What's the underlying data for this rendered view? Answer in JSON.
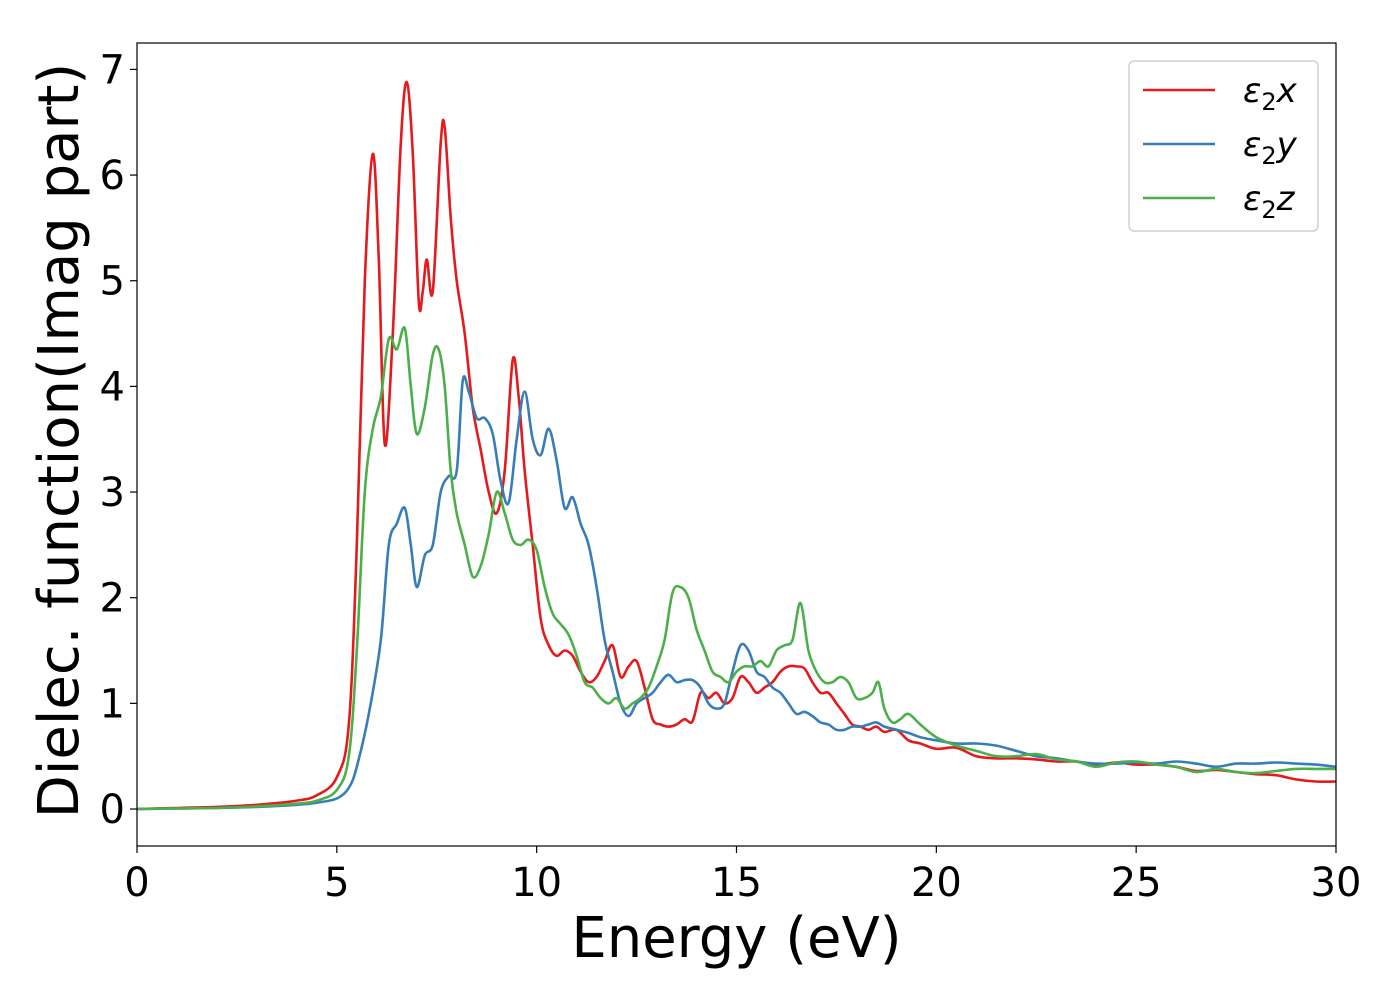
{
  "chart_data": {
    "type": "line",
    "xlabel": "Energy (eV)",
    "ylabel": "Dielec. function(Imag part)",
    "xlim": [
      0,
      30
    ],
    "ylim": [
      -0.35,
      7.25
    ],
    "xticks": [
      0,
      5,
      10,
      15,
      20,
      25,
      30
    ],
    "yticks": [
      0,
      1,
      2,
      3,
      4,
      5,
      6,
      7
    ],
    "grid": false,
    "legend_position": "top-right",
    "series": [
      {
        "name": "ε2x",
        "legend_main": "ε",
        "legend_sub": "2",
        "legend_tail": "x",
        "color": "#e41a1c",
        "points": [
          [
            0,
            0.0
          ],
          [
            1,
            0.01
          ],
          [
            2,
            0.02
          ],
          [
            3,
            0.04
          ],
          [
            4,
            0.08
          ],
          [
            4.5,
            0.13
          ],
          [
            5,
            0.3
          ],
          [
            5.3,
            0.8
          ],
          [
            5.5,
            2.5
          ],
          [
            5.7,
            5.0
          ],
          [
            5.9,
            6.2
          ],
          [
            6.05,
            5.2
          ],
          [
            6.2,
            3.45
          ],
          [
            6.4,
            4.5
          ],
          [
            6.6,
            6.3
          ],
          [
            6.75,
            6.88
          ],
          [
            6.9,
            6.2
          ],
          [
            7.05,
            4.8
          ],
          [
            7.15,
            4.9
          ],
          [
            7.25,
            5.2
          ],
          [
            7.4,
            4.9
          ],
          [
            7.6,
            6.3
          ],
          [
            7.7,
            6.45
          ],
          [
            7.85,
            5.6
          ],
          [
            8.0,
            5.0
          ],
          [
            8.2,
            4.5
          ],
          [
            8.4,
            3.8
          ],
          [
            8.6,
            3.4
          ],
          [
            8.8,
            3.0
          ],
          [
            9.0,
            2.8
          ],
          [
            9.2,
            3.2
          ],
          [
            9.4,
            4.25
          ],
          [
            9.55,
            3.9
          ],
          [
            9.7,
            3.2
          ],
          [
            9.9,
            2.5
          ],
          [
            10.1,
            1.8
          ],
          [
            10.3,
            1.55
          ],
          [
            10.5,
            1.45
          ],
          [
            10.7,
            1.5
          ],
          [
            10.9,
            1.45
          ],
          [
            11.1,
            1.3
          ],
          [
            11.3,
            1.2
          ],
          [
            11.5,
            1.25
          ],
          [
            11.7,
            1.4
          ],
          [
            11.9,
            1.55
          ],
          [
            12.1,
            1.25
          ],
          [
            12.3,
            1.35
          ],
          [
            12.5,
            1.4
          ],
          [
            12.7,
            1.15
          ],
          [
            12.9,
            0.85
          ],
          [
            13.1,
            0.8
          ],
          [
            13.3,
            0.78
          ],
          [
            13.5,
            0.8
          ],
          [
            13.7,
            0.85
          ],
          [
            13.9,
            0.83
          ],
          [
            14.1,
            1.1
          ],
          [
            14.3,
            1.05
          ],
          [
            14.5,
            1.1
          ],
          [
            14.7,
            1.0
          ],
          [
            14.9,
            1.05
          ],
          [
            15.1,
            1.25
          ],
          [
            15.3,
            1.2
          ],
          [
            15.5,
            1.1
          ],
          [
            15.7,
            1.15
          ],
          [
            15.9,
            1.2
          ],
          [
            16.1,
            1.3
          ],
          [
            16.3,
            1.35
          ],
          [
            16.5,
            1.35
          ],
          [
            16.7,
            1.33
          ],
          [
            16.9,
            1.2
          ],
          [
            17.1,
            1.1
          ],
          [
            17.3,
            1.1
          ],
          [
            17.5,
            1.0
          ],
          [
            17.7,
            0.9
          ],
          [
            17.9,
            0.8
          ],
          [
            18.1,
            0.78
          ],
          [
            18.3,
            0.75
          ],
          [
            18.5,
            0.78
          ],
          [
            18.7,
            0.73
          ],
          [
            19.0,
            0.75
          ],
          [
            19.3,
            0.65
          ],
          [
            19.6,
            0.62
          ],
          [
            20,
            0.57
          ],
          [
            20.5,
            0.58
          ],
          [
            21,
            0.5
          ],
          [
            21.5,
            0.48
          ],
          [
            22,
            0.48
          ],
          [
            22.5,
            0.47
          ],
          [
            23,
            0.45
          ],
          [
            23.5,
            0.45
          ],
          [
            24,
            0.42
          ],
          [
            24.5,
            0.44
          ],
          [
            25,
            0.42
          ],
          [
            25.5,
            0.42
          ],
          [
            26,
            0.4
          ],
          [
            26.5,
            0.36
          ],
          [
            27,
            0.37
          ],
          [
            27.5,
            0.35
          ],
          [
            28,
            0.33
          ],
          [
            28.5,
            0.32
          ],
          [
            29,
            0.28
          ],
          [
            29.5,
            0.26
          ],
          [
            30,
            0.26
          ]
        ]
      },
      {
        "name": "ε2y",
        "legend_main": "ε",
        "legend_sub": "2",
        "legend_tail": "y",
        "color": "#377eb8",
        "points": [
          [
            0,
            0.0
          ],
          [
            1,
            0.005
          ],
          [
            2,
            0.01
          ],
          [
            3,
            0.02
          ],
          [
            4,
            0.04
          ],
          [
            4.5,
            0.06
          ],
          [
            5,
            0.1
          ],
          [
            5.3,
            0.2
          ],
          [
            5.5,
            0.4
          ],
          [
            5.8,
            0.9
          ],
          [
            6.1,
            1.6
          ],
          [
            6.3,
            2.5
          ],
          [
            6.5,
            2.7
          ],
          [
            6.7,
            2.85
          ],
          [
            6.85,
            2.5
          ],
          [
            7.0,
            2.1
          ],
          [
            7.2,
            2.4
          ],
          [
            7.4,
            2.5
          ],
          [
            7.6,
            3.0
          ],
          [
            7.8,
            3.15
          ],
          [
            8.0,
            3.2
          ],
          [
            8.15,
            4.05
          ],
          [
            8.3,
            3.95
          ],
          [
            8.5,
            3.7
          ],
          [
            8.7,
            3.7
          ],
          [
            8.9,
            3.55
          ],
          [
            9.1,
            3.1
          ],
          [
            9.3,
            2.9
          ],
          [
            9.5,
            3.5
          ],
          [
            9.7,
            3.95
          ],
          [
            9.9,
            3.5
          ],
          [
            10.1,
            3.35
          ],
          [
            10.3,
            3.6
          ],
          [
            10.5,
            3.3
          ],
          [
            10.7,
            2.85
          ],
          [
            10.9,
            2.95
          ],
          [
            11.1,
            2.7
          ],
          [
            11.3,
            2.5
          ],
          [
            11.5,
            2.1
          ],
          [
            11.7,
            1.6
          ],
          [
            11.9,
            1.3
          ],
          [
            12.1,
            1.0
          ],
          [
            12.3,
            0.88
          ],
          [
            12.5,
            1.0
          ],
          [
            12.7,
            1.05
          ],
          [
            12.9,
            1.1
          ],
          [
            13.1,
            1.2
          ],
          [
            13.3,
            1.27
          ],
          [
            13.5,
            1.2
          ],
          [
            13.7,
            1.22
          ],
          [
            13.9,
            1.22
          ],
          [
            14.1,
            1.15
          ],
          [
            14.3,
            1.0
          ],
          [
            14.5,
            0.95
          ],
          [
            14.7,
            1.0
          ],
          [
            14.9,
            1.3
          ],
          [
            15.1,
            1.55
          ],
          [
            15.3,
            1.5
          ],
          [
            15.5,
            1.3
          ],
          [
            15.7,
            1.25
          ],
          [
            15.9,
            1.15
          ],
          [
            16.1,
            1.1
          ],
          [
            16.3,
            1.0
          ],
          [
            16.5,
            0.9
          ],
          [
            16.7,
            0.92
          ],
          [
            16.9,
            0.88
          ],
          [
            17.1,
            0.82
          ],
          [
            17.3,
            0.8
          ],
          [
            17.5,
            0.75
          ],
          [
            17.7,
            0.75
          ],
          [
            17.9,
            0.78
          ],
          [
            18.1,
            0.78
          ],
          [
            18.3,
            0.8
          ],
          [
            18.5,
            0.82
          ],
          [
            18.7,
            0.78
          ],
          [
            19.0,
            0.75
          ],
          [
            19.3,
            0.72
          ],
          [
            19.6,
            0.68
          ],
          [
            20,
            0.65
          ],
          [
            20.5,
            0.62
          ],
          [
            21,
            0.62
          ],
          [
            21.5,
            0.6
          ],
          [
            22,
            0.55
          ],
          [
            22.5,
            0.5
          ],
          [
            23,
            0.48
          ],
          [
            23.5,
            0.45
          ],
          [
            24,
            0.43
          ],
          [
            24.5,
            0.43
          ],
          [
            25,
            0.44
          ],
          [
            25.5,
            0.43
          ],
          [
            26,
            0.45
          ],
          [
            26.5,
            0.43
          ],
          [
            27,
            0.4
          ],
          [
            27.5,
            0.43
          ],
          [
            28,
            0.43
          ],
          [
            28.5,
            0.44
          ],
          [
            29,
            0.43
          ],
          [
            29.5,
            0.42
          ],
          [
            30,
            0.4
          ]
        ]
      },
      {
        "name": "ε2z",
        "legend_main": "ε",
        "legend_sub": "2",
        "legend_tail": "z",
        "color": "#4daf4a",
        "points": [
          [
            0,
            0.0
          ],
          [
            1,
            0.005
          ],
          [
            2,
            0.01
          ],
          [
            3,
            0.025
          ],
          [
            4,
            0.05
          ],
          [
            4.5,
            0.08
          ],
          [
            5,
            0.18
          ],
          [
            5.3,
            0.5
          ],
          [
            5.5,
            1.5
          ],
          [
            5.7,
            3.0
          ],
          [
            5.9,
            3.6
          ],
          [
            6.1,
            3.9
          ],
          [
            6.3,
            4.45
          ],
          [
            6.5,
            4.35
          ],
          [
            6.7,
            4.55
          ],
          [
            6.85,
            4.0
          ],
          [
            7.0,
            3.55
          ],
          [
            7.2,
            3.8
          ],
          [
            7.4,
            4.3
          ],
          [
            7.55,
            4.35
          ],
          [
            7.7,
            4.0
          ],
          [
            7.85,
            3.2
          ],
          [
            8.0,
            2.8
          ],
          [
            8.2,
            2.5
          ],
          [
            8.4,
            2.2
          ],
          [
            8.6,
            2.3
          ],
          [
            8.8,
            2.6
          ],
          [
            9.0,
            3.0
          ],
          [
            9.2,
            2.8
          ],
          [
            9.4,
            2.55
          ],
          [
            9.6,
            2.5
          ],
          [
            9.8,
            2.55
          ],
          [
            10.0,
            2.45
          ],
          [
            10.2,
            2.1
          ],
          [
            10.4,
            1.85
          ],
          [
            10.6,
            1.75
          ],
          [
            10.8,
            1.65
          ],
          [
            11.0,
            1.45
          ],
          [
            11.2,
            1.2
          ],
          [
            11.4,
            1.15
          ],
          [
            11.6,
            1.05
          ],
          [
            11.8,
            1.0
          ],
          [
            12.0,
            1.05
          ],
          [
            12.2,
            0.95
          ],
          [
            12.4,
            1.0
          ],
          [
            12.6,
            1.05
          ],
          [
            12.8,
            1.15
          ],
          [
            13.0,
            1.35
          ],
          [
            13.2,
            1.6
          ],
          [
            13.4,
            2.05
          ],
          [
            13.6,
            2.1
          ],
          [
            13.8,
            2.0
          ],
          [
            14.0,
            1.7
          ],
          [
            14.2,
            1.5
          ],
          [
            14.4,
            1.3
          ],
          [
            14.6,
            1.25
          ],
          [
            14.8,
            1.2
          ],
          [
            15.0,
            1.3
          ],
          [
            15.2,
            1.35
          ],
          [
            15.4,
            1.35
          ],
          [
            15.6,
            1.4
          ],
          [
            15.8,
            1.35
          ],
          [
            16.0,
            1.5
          ],
          [
            16.2,
            1.55
          ],
          [
            16.4,
            1.6
          ],
          [
            16.6,
            1.95
          ],
          [
            16.8,
            1.5
          ],
          [
            17.0,
            1.3
          ],
          [
            17.2,
            1.2
          ],
          [
            17.4,
            1.2
          ],
          [
            17.6,
            1.25
          ],
          [
            17.8,
            1.2
          ],
          [
            18.0,
            1.05
          ],
          [
            18.2,
            1.05
          ],
          [
            18.4,
            1.1
          ],
          [
            18.55,
            1.2
          ],
          [
            18.7,
            0.95
          ],
          [
            18.9,
            0.82
          ],
          [
            19.1,
            0.85
          ],
          [
            19.3,
            0.9
          ],
          [
            19.6,
            0.8
          ],
          [
            20,
            0.68
          ],
          [
            20.5,
            0.6
          ],
          [
            21,
            0.55
          ],
          [
            21.5,
            0.5
          ],
          [
            22,
            0.5
          ],
          [
            22.5,
            0.52
          ],
          [
            23,
            0.47
          ],
          [
            23.5,
            0.45
          ],
          [
            24,
            0.4
          ],
          [
            24.5,
            0.44
          ],
          [
            25,
            0.45
          ],
          [
            25.5,
            0.42
          ],
          [
            26,
            0.4
          ],
          [
            26.5,
            0.35
          ],
          [
            27,
            0.38
          ],
          [
            27.5,
            0.35
          ],
          [
            28,
            0.34
          ],
          [
            28.5,
            0.36
          ],
          [
            29,
            0.38
          ],
          [
            29.5,
            0.38
          ],
          [
            30,
            0.38
          ]
        ]
      }
    ]
  }
}
